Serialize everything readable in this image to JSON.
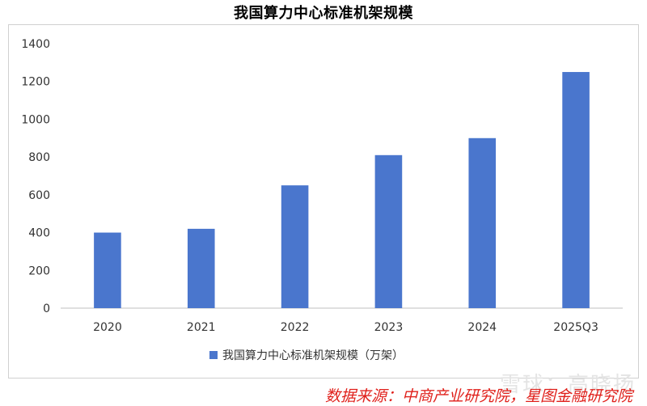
{
  "chart_data": {
    "type": "bar",
    "title": "我国算力中心标准机架规模",
    "categories": [
      "2020",
      "2021",
      "2022",
      "2023",
      "2024",
      "2025Q3"
    ],
    "series": [
      {
        "name": "我国算力中心标准机架规模（万架）",
        "values": [
          400,
          420,
          650,
          810,
          900,
          1250
        ],
        "color": "#4a76cd"
      }
    ],
    "ylim": [
      0,
      1400
    ],
    "yticks": [
      "0",
      "200",
      "400",
      "600",
      "800",
      "1000",
      "1200",
      "1400"
    ],
    "grid": false,
    "legend": "bottom"
  },
  "source": "数据来源：中商产业研究院，星图金融研究院",
  "watermark": "雪球：高晓扬"
}
